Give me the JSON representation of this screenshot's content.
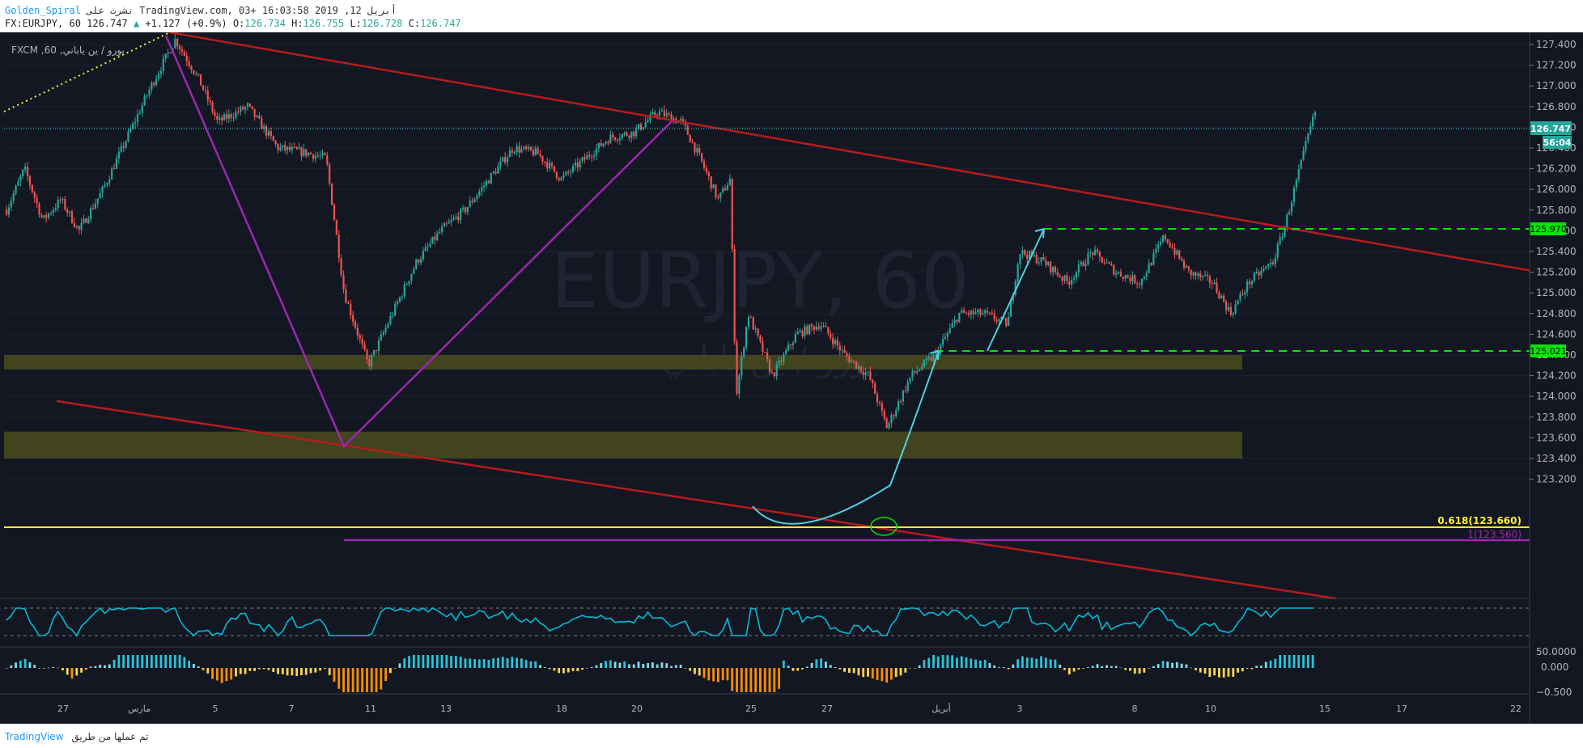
{
  "header": {
    "author": "Golden_Spiral",
    "publish_info": "نشرت على TradingView.com, أبريل 12, 2019 16:03:58 +03",
    "symbol": "FX:EURJPY, 60",
    "last": "126.747",
    "change_arrow": "▲",
    "change": "+1.127 (+0.9%)",
    "o_label": "O:",
    "o_value": "126.734",
    "h_label": "H:",
    "h_value": "126.755",
    "l_label": "L:",
    "l_value": "126.728",
    "c_label": "C:",
    "c_value": "126.747"
  },
  "legend": {
    "text": "FXCM ,60 ,يورو / ين ياباني"
  },
  "watermark": {
    "symbol": "EURJPY, 60",
    "name": "يورو / ين ياباني"
  },
  "price_axis": {
    "ticks": [
      "127.400",
      "127.200",
      "127.000",
      "126.800",
      "126.600",
      "126.400",
      "126.200",
      "126.000",
      "125.800",
      "125.600",
      "125.400",
      "125.200",
      "125.000",
      "124.800",
      "124.600",
      "124.400",
      "124.200",
      "124.000",
      "123.800",
      "123.600",
      "123.400",
      "123.200"
    ],
    "last_price_label": "126.747",
    "countdown_label": "56:04",
    "level_labels": [
      "125.970",
      "125.021"
    ]
  },
  "fib_labels": {
    "golden": "0.618(123.660)",
    "one": "1(123.560)"
  },
  "rsi_axis": {
    "tick": "50.0000"
  },
  "osc_axis": {
    "ticks": [
      "0.000",
      "−0.500"
    ]
  },
  "time_axis": {
    "ticks": [
      "27",
      "مارس",
      "5",
      "7",
      "11",
      "13",
      "18",
      "20",
      "25",
      "27",
      "أبريل",
      "3",
      "8",
      "10",
      "15",
      "17",
      "22"
    ]
  },
  "footer": {
    "brand": "TradingView",
    "made_with": "تم عملها من طريق"
  },
  "colors": {
    "background": "#131722",
    "up_candle": "#26a69a",
    "down_candle": "#ef5350",
    "channel": "#b71c1c",
    "purple": "#9c27b0",
    "zone": "#4b4b1e",
    "fib_yellow": "#ffeb3b",
    "green_dash": "#00e600",
    "cyan_arrow": "#4dd0e1",
    "rsi": "#00bcd4"
  },
  "chart_data": {
    "type": "candlestick",
    "symbol": "EURJPY",
    "timeframe": "60",
    "x_ticks": [
      "27",
      "مارس",
      "5",
      "7",
      "11",
      "13",
      "18",
      "20",
      "25",
      "27",
      "أبريل",
      "3",
      "8",
      "10",
      "15",
      "17",
      "22"
    ],
    "ylim": [
      123.1,
      127.45
    ],
    "last_price": 126.747,
    "close_path": [
      {
        "t": 0,
        "price": 125.8
      },
      {
        "t": 3,
        "price": 126.2
      },
      {
        "t": 6,
        "price": 125.7
      },
      {
        "t": 9,
        "price": 125.9
      },
      {
        "t": 12,
        "price": 125.6
      },
      {
        "t": 16,
        "price": 126.0
      },
      {
        "t": 20,
        "price": 126.5
      },
      {
        "t": 24,
        "price": 127.0
      },
      {
        "t": 28,
        "price": 127.45
      },
      {
        "t": 32,
        "price": 127.05
      },
      {
        "t": 35,
        "price": 126.65
      },
      {
        "t": 40,
        "price": 126.8
      },
      {
        "t": 45,
        "price": 126.4
      },
      {
        "t": 50,
        "price": 126.35
      },
      {
        "t": 53,
        "price": 126.3
      },
      {
        "t": 56,
        "price": 125.0
      },
      {
        "t": 60,
        "price": 124.3
      },
      {
        "t": 64,
        "price": 124.8
      },
      {
        "t": 68,
        "price": 125.3
      },
      {
        "t": 72,
        "price": 125.6
      },
      {
        "t": 76,
        "price": 125.8
      },
      {
        "t": 80,
        "price": 126.1
      },
      {
        "t": 84,
        "price": 126.4
      },
      {
        "t": 88,
        "price": 126.35
      },
      {
        "t": 92,
        "price": 126.1
      },
      {
        "t": 96,
        "price": 126.3
      },
      {
        "t": 100,
        "price": 126.5
      },
      {
        "t": 104,
        "price": 126.55
      },
      {
        "t": 108,
        "price": 126.75
      },
      {
        "t": 112,
        "price": 126.65
      },
      {
        "t": 115,
        "price": 126.3
      },
      {
        "t": 118,
        "price": 125.9
      },
      {
        "t": 120,
        "price": 126.1
      },
      {
        "t": 121,
        "price": 124.0
      },
      {
        "t": 123,
        "price": 124.8
      },
      {
        "t": 127,
        "price": 124.2
      },
      {
        "t": 131,
        "price": 124.6
      },
      {
        "t": 135,
        "price": 124.7
      },
      {
        "t": 139,
        "price": 124.4
      },
      {
        "t": 143,
        "price": 124.2
      },
      {
        "t": 146,
        "price": 123.7
      },
      {
        "t": 150,
        "price": 124.2
      },
      {
        "t": 154,
        "price": 124.4
      },
      {
        "t": 158,
        "price": 124.8
      },
      {
        "t": 162,
        "price": 124.8
      },
      {
        "t": 166,
        "price": 124.7
      },
      {
        "t": 168,
        "price": 125.4
      },
      {
        "t": 172,
        "price": 125.3
      },
      {
        "t": 176,
        "price": 125.1
      },
      {
        "t": 180,
        "price": 125.4
      },
      {
        "t": 184,
        "price": 125.2
      },
      {
        "t": 188,
        "price": 125.1
      },
      {
        "t": 192,
        "price": 125.55
      },
      {
        "t": 196,
        "price": 125.2
      },
      {
        "t": 200,
        "price": 125.1
      },
      {
        "t": 203,
        "price": 124.8
      },
      {
        "t": 206,
        "price": 125.1
      },
      {
        "t": 210,
        "price": 125.3
      },
      {
        "t": 212,
        "price": 125.65
      },
      {
        "t": 214,
        "price": 126.1
      },
      {
        "t": 216,
        "price": 126.55
      },
      {
        "t": 217,
        "price": 126.747
      }
    ],
    "annotations": {
      "horizontal_levels": [
        125.97,
        125.021
      ],
      "fib_levels": [
        {
          "label": "0.618(123.660)",
          "price": 123.66
        },
        {
          "label": "1(123.560)",
          "price": 123.56
        }
      ],
      "zones": [
        [
          124.26,
          124.4
        ],
        [
          123.4,
          123.66
        ]
      ]
    },
    "rsi": {
      "level": 50.0
    },
    "oscillator": {
      "zero": 0.0,
      "low": -0.5
    }
  }
}
